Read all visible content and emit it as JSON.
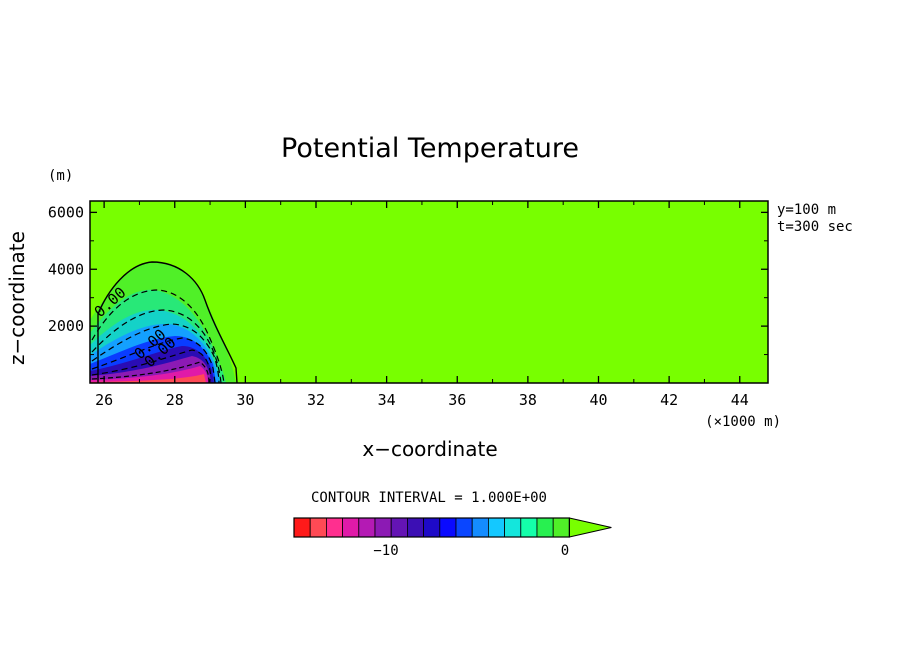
{
  "chart_data": {
    "type": "heatmap",
    "title": "Potential Temperature",
    "xlabel": "x−coordinate",
    "ylabel": "z−coordinate",
    "x_unit": "(×1000 m)",
    "y_unit": "(m)",
    "xlim": [
      25.6,
      44.8
    ],
    "ylim": [
      0,
      6400
    ],
    "x_ticks": [
      26,
      28,
      30,
      32,
      34,
      36,
      38,
      40,
      42,
      44
    ],
    "y_ticks": [
      2000,
      4000,
      6000
    ],
    "x_tick_labels": [
      "26",
      "28",
      "30",
      "32",
      "34",
      "36",
      "38",
      "40",
      "42",
      "44"
    ],
    "y_tick_labels": [
      "2000",
      "4000",
      "6000"
    ],
    "annotations": [
      "y=100 m",
      "t=300 sec"
    ],
    "contour_interval_text": "CONTOUR INTERVAL = 1.000E+00",
    "contour_labels": [
      "0.00"
    ],
    "field": {
      "description_min": -14,
      "max": 0,
      "cold_pool_center_x": 28.5,
      "cold_pool_top_z": 4200,
      "cold_pool_right_edge_x": 29.6
    },
    "colorbar": {
      "colors": [
        "#ff1a1a",
        "#ff4a55",
        "#ff2f8f",
        "#e01aa8",
        "#b41ab4",
        "#8c1ab4",
        "#6414b4",
        "#3c0fb4",
        "#1e0ac8",
        "#0a0aff",
        "#0a46ff",
        "#148cff",
        "#14c8ff",
        "#14e6dc",
        "#14ffaa",
        "#28f050",
        "#50f028"
      ],
      "extend_color": "#78ff00",
      "tick_labels": [
        "−10",
        "0"
      ]
    }
  }
}
